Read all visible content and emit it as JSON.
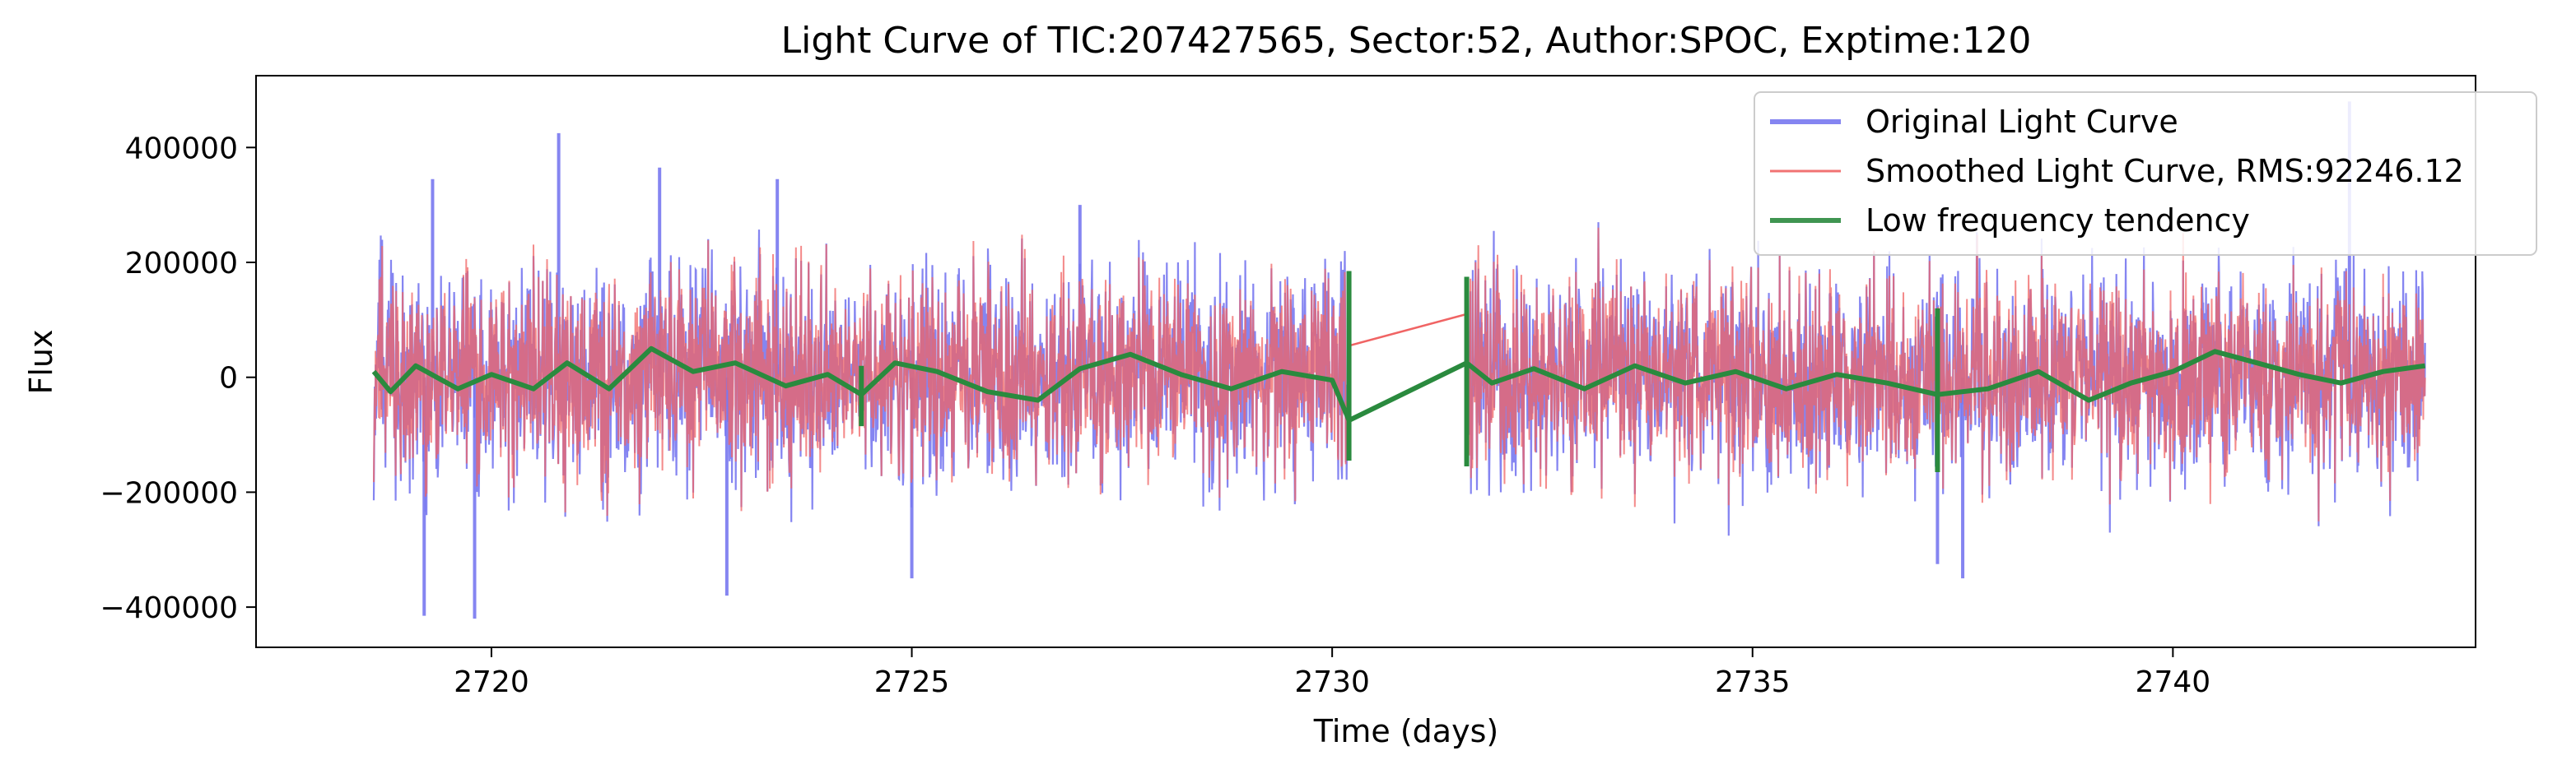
{
  "chart_data": {
    "type": "line",
    "title": "Light Curve of TIC:207427565, Sector:52, Author:SPOC, Exptime:120",
    "xlabel": "Time (days)",
    "ylabel": "Flux",
    "xlim": [
      2717.2,
      2743.6
    ],
    "ylim": [
      -470000,
      525000
    ],
    "x_ticks": [
      2720,
      2725,
      2730,
      2735,
      2740
    ],
    "x_tick_labels": [
      "2720",
      "2725",
      "2730",
      "2735",
      "2740"
    ],
    "y_ticks": [
      400000,
      200000,
      0,
      -200000,
      -400000
    ],
    "y_tick_labels": [
      "400000",
      "200000",
      "0",
      "−200000",
      "−400000"
    ],
    "grid": false,
    "legend_position": "top-right",
    "segments": [
      {
        "x_start": 2718.6,
        "x_end": 2730.2
      },
      {
        "x_start": 2731.6,
        "x_end": 2743.0
      }
    ],
    "series": [
      {
        "name": "Original Light Curve",
        "color": "#7878f0",
        "typical_range": [
          -200000,
          200000
        ],
        "peaks": [
          {
            "x": 2719.2,
            "y": -415000
          },
          {
            "x": 2719.3,
            "y": 345000
          },
          {
            "x": 2719.8,
            "y": -420000
          },
          {
            "x": 2720.8,
            "y": 425000
          },
          {
            "x": 2722.0,
            "y": 365000
          },
          {
            "x": 2722.8,
            "y": -380000
          },
          {
            "x": 2723.4,
            "y": 345000
          },
          {
            "x": 2725.0,
            "y": -350000
          },
          {
            "x": 2727.0,
            "y": 300000
          },
          {
            "x": 2737.2,
            "y": -325000
          },
          {
            "x": 2737.5,
            "y": -350000
          },
          {
            "x": 2742.1,
            "y": 480000
          }
        ]
      },
      {
        "name": "Smoothed Light Curve, RMS:92246.12",
        "color": "#f06464",
        "typical_range": [
          -180000,
          180000
        ],
        "gap_line": [
          {
            "x": 2730.2,
            "y": 55000
          },
          {
            "x": 2731.6,
            "y": 110000
          }
        ]
      },
      {
        "name": "Low frequency tendency",
        "color": "#2a8a3e",
        "points": [
          {
            "x": 2718.6,
            "y": 10000
          },
          {
            "x": 2718.8,
            "y": -25000
          },
          {
            "x": 2719.1,
            "y": 20000
          },
          {
            "x": 2719.6,
            "y": -20000
          },
          {
            "x": 2720.0,
            "y": 5000
          },
          {
            "x": 2720.5,
            "y": -20000
          },
          {
            "x": 2720.9,
            "y": 25000
          },
          {
            "x": 2721.4,
            "y": -20000
          },
          {
            "x": 2721.9,
            "y": 50000
          },
          {
            "x": 2722.4,
            "y": 10000
          },
          {
            "x": 2722.9,
            "y": 25000
          },
          {
            "x": 2723.5,
            "y": -15000
          },
          {
            "x": 2724.0,
            "y": 5000
          },
          {
            "x": 2724.4,
            "y": -30000
          },
          {
            "x": 2724.8,
            "y": 25000
          },
          {
            "x": 2725.3,
            "y": 10000
          },
          {
            "x": 2725.9,
            "y": -25000
          },
          {
            "x": 2726.5,
            "y": -40000
          },
          {
            "x": 2727.0,
            "y": 15000
          },
          {
            "x": 2727.6,
            "y": 40000
          },
          {
            "x": 2728.2,
            "y": 5000
          },
          {
            "x": 2728.8,
            "y": -20000
          },
          {
            "x": 2729.4,
            "y": 10000
          },
          {
            "x": 2730.0,
            "y": -5000
          },
          {
            "x": 2730.2,
            "y": -75000
          },
          {
            "x": 2731.6,
            "y": 25000
          },
          {
            "x": 2731.9,
            "y": -10000
          },
          {
            "x": 2732.4,
            "y": 15000
          },
          {
            "x": 2733.0,
            "y": -20000
          },
          {
            "x": 2733.6,
            "y": 20000
          },
          {
            "x": 2734.2,
            "y": -10000
          },
          {
            "x": 2734.8,
            "y": 10000
          },
          {
            "x": 2735.4,
            "y": -20000
          },
          {
            "x": 2736.0,
            "y": 5000
          },
          {
            "x": 2736.6,
            "y": -10000
          },
          {
            "x": 2737.2,
            "y": -30000
          },
          {
            "x": 2737.8,
            "y": -20000
          },
          {
            "x": 2738.4,
            "y": 10000
          },
          {
            "x": 2739.0,
            "y": -40000
          },
          {
            "x": 2739.5,
            "y": -10000
          },
          {
            "x": 2740.0,
            "y": 10000
          },
          {
            "x": 2740.5,
            "y": 45000
          },
          {
            "x": 2741.0,
            "y": 25000
          },
          {
            "x": 2741.5,
            "y": 5000
          },
          {
            "x": 2742.0,
            "y": -10000
          },
          {
            "x": 2742.5,
            "y": 10000
          },
          {
            "x": 2743.0,
            "y": 20000
          }
        ],
        "spikes": [
          {
            "x": 2724.4,
            "y_min": -85000,
            "y_max": 20000
          },
          {
            "x": 2730.2,
            "y_min": -145000,
            "y_max": 185000
          },
          {
            "x": 2731.6,
            "y_min": -155000,
            "y_max": 175000
          },
          {
            "x": 2737.2,
            "y_min": -165000,
            "y_max": 120000
          }
        ]
      }
    ]
  }
}
